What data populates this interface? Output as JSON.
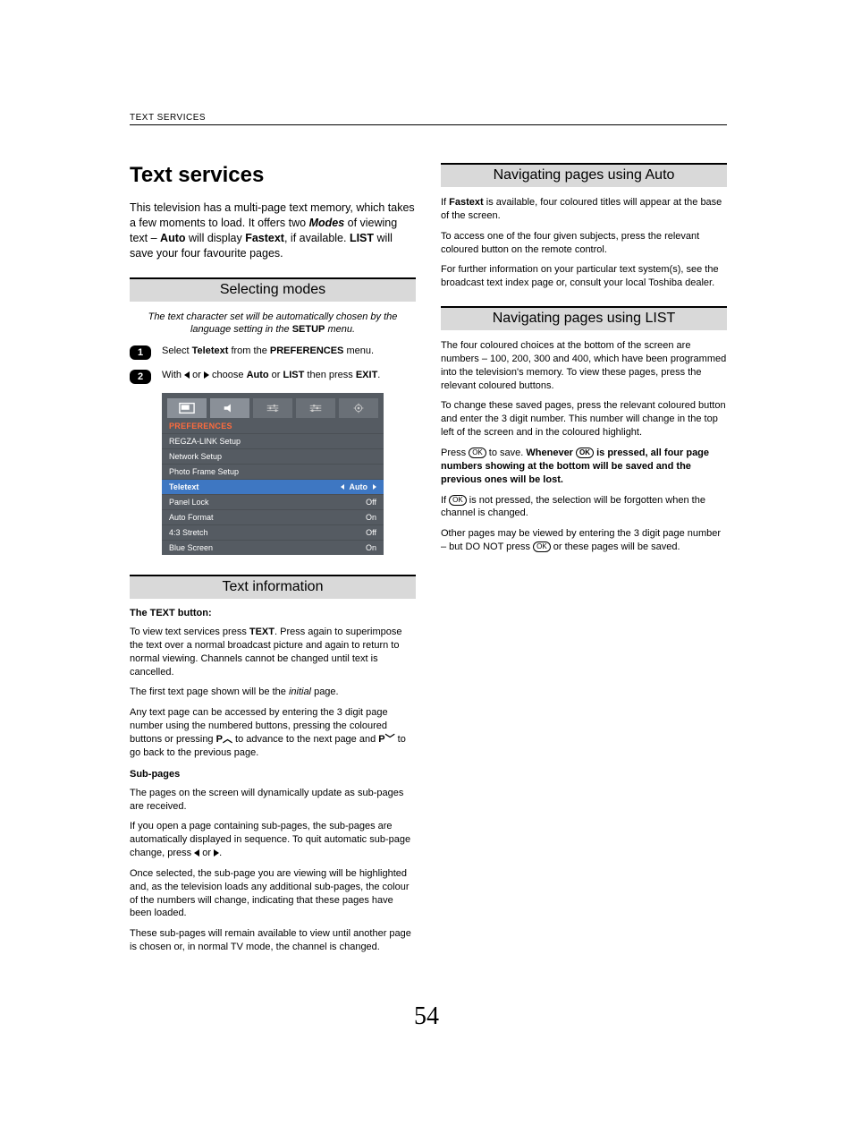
{
  "header": {
    "section": "TEXT SERVICES"
  },
  "page_number": "54",
  "left": {
    "title": "Text services",
    "intro_parts": {
      "p1": "This television has a multi-page text memory, which takes a few moments to load. It offers two ",
      "modes": "Modes",
      "p2": " of viewing text – ",
      "auto": "Auto",
      "p3": " will display ",
      "fastext": "Fastext",
      "p4": ", if available. ",
      "list": "LIST",
      "p5": " will save your four favourite pages."
    },
    "selecting_modes": {
      "heading": "Selecting modes",
      "note_pre": "The text character set will be automatically chosen by the language setting in the ",
      "note_setup": "SETUP",
      "note_post": " menu.",
      "step1": {
        "pre": "Select ",
        "teletext": "Teletext",
        "mid": " from the ",
        "prefs": "PREFERENCES",
        "post": " menu."
      },
      "step2": {
        "pre": "With ",
        "mid1": " or ",
        "mid2": " choose ",
        "auto": "Auto",
        "or": " or ",
        "list": "LIST",
        "mid3": " then press ",
        "exit": "EXIT",
        "post": "."
      }
    },
    "menu": {
      "title": "PREFERENCES",
      "rows": [
        {
          "label": "REGZA-LINK Setup",
          "value": ""
        },
        {
          "label": "Network Setup",
          "value": ""
        },
        {
          "label": "Photo Frame Setup",
          "value": ""
        },
        {
          "label": "Teletext",
          "value": "Auto",
          "selected": true,
          "arrows": true
        },
        {
          "label": "Panel Lock",
          "value": "Off"
        },
        {
          "label": "Auto Format",
          "value": "On"
        },
        {
          "label": "4:3 Stretch",
          "value": "Off"
        },
        {
          "label": "Blue Screen",
          "value": "On"
        }
      ],
      "colors": {
        "bg": "#555b62",
        "selected": "#3e77c2",
        "accent": "#ff6b3d"
      }
    },
    "text_info": {
      "heading": "Text information",
      "sub_text_button": "The TEXT button:",
      "p1_pre": "To view text services press ",
      "p1_text": "TEXT",
      "p1_post": ". Press again to superimpose the text over a normal broadcast picture and again to return to normal viewing. Channels cannot be changed until text is cancelled.",
      "p2_pre": "The first text page shown will be the ",
      "p2_initial": "initial",
      "p2_post": " page.",
      "p3_pre": "Any text page can be accessed by entering the 3 digit page number using the numbered buttons, pressing the coloured buttons or pressing ",
      "p3_p1": "P",
      "p3_mid": " to advance to the next page and ",
      "p3_p2": "P",
      "p3_post": " to go back to the previous page.",
      "sub_subpages": "Sub-pages",
      "p4": "The pages on the screen will dynamically update as sub-pages are received.",
      "p5_pre": "If you open a page containing sub-pages, the sub-pages are automatically displayed in sequence. To quit automatic sub-page change, press ",
      "p5_or": " or ",
      "p5_post": ".",
      "p6": "Once selected, the sub-page you are viewing will be highlighted and, as the television loads any additional sub-pages, the colour of the numbers will change, indicating that these pages have been loaded.",
      "p7": "These sub-pages will remain available to view until another page is chosen or, in normal TV mode, the channel is changed."
    }
  },
  "right": {
    "nav_auto": {
      "heading": "Navigating pages using Auto",
      "p1_pre": "If ",
      "p1_fastext": "Fastext",
      "p1_post": " is available, four coloured titles will appear at the base of the screen.",
      "p2": "To access one of the four given subjects, press the relevant coloured button on the remote control.",
      "p3": "For further information on your particular text system(s), see the broadcast text index page or, consult your local Toshiba dealer."
    },
    "nav_list": {
      "heading": "Navigating pages using LIST",
      "p1": "The four coloured choices at the bottom of the screen are numbers – 100, 200, 300 and 400, which have been programmed into the television's memory. To view these pages, press the relevant coloured buttons.",
      "p2": "To change these saved pages, press the relevant coloured button and enter the 3 digit number. This number will change in the top left of the screen and in the coloured highlight.",
      "p3_pre": "Press ",
      "p3_mid1": " to save. ",
      "p3_bold1": "Whenever ",
      "p3_bold2": " is pressed, all four page numbers showing at the bottom will be saved and the previous ones will be lost.",
      "p4_pre": "If ",
      "p4_post": " is not pressed, the selection will be forgotten when the channel is changed.",
      "p5_pre": "Other pages may be viewed by entering the 3 digit page number – but DO NOT press ",
      "p5_post": " or these pages will be saved."
    }
  },
  "ok_label": "OK"
}
